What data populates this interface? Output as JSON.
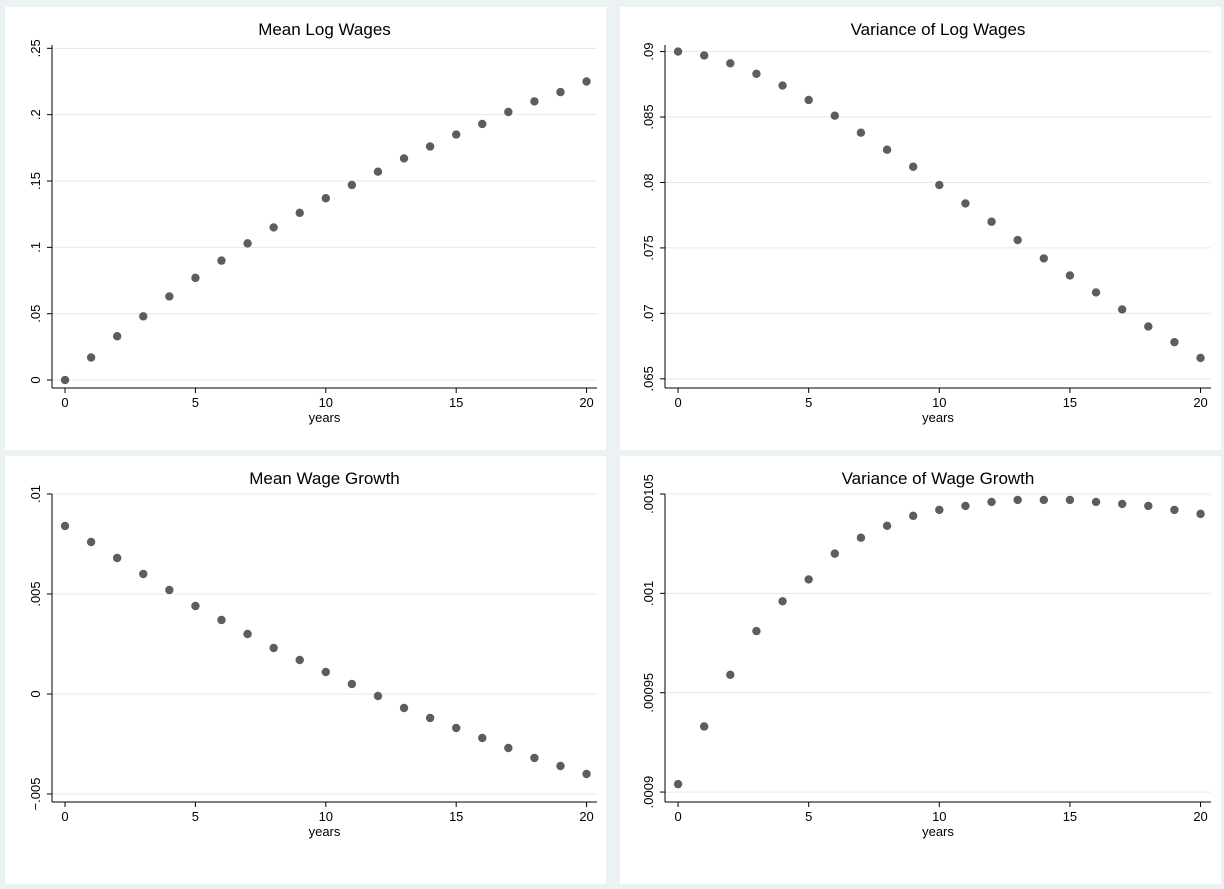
{
  "chart_data": [
    {
      "type": "scatter",
      "title": "Mean Log Wages",
      "xlabel": "years",
      "ylabel": "",
      "xlim": [
        -0.5,
        20.4
      ],
      "ylim": [
        -0.006,
        0.2525
      ],
      "xticks": [
        0,
        5,
        10,
        15,
        20
      ],
      "xtick_labels": [
        "0",
        "5",
        "10",
        "15",
        "20"
      ],
      "yticks": [
        0,
        0.05,
        0.1,
        0.15,
        0.2,
        0.25
      ],
      "ytick_labels": [
        "0",
        ".05",
        ".1",
        ".15",
        ".2",
        ".25"
      ],
      "grid": true,
      "x": [
        0,
        1,
        2,
        3,
        4,
        5,
        6,
        7,
        8,
        9,
        10,
        11,
        12,
        13,
        14,
        15,
        16,
        17,
        18,
        19,
        20
      ],
      "y": [
        0,
        0.017,
        0.033,
        0.048,
        0.063,
        0.077,
        0.09,
        0.103,
        0.115,
        0.126,
        0.137,
        0.147,
        0.157,
        0.167,
        0.176,
        0.185,
        0.193,
        0.202,
        0.21,
        0.217,
        0.225
      ]
    },
    {
      "type": "scatter",
      "title": "Variance of Log Wages",
      "xlabel": "years",
      "ylabel": "",
      "xlim": [
        -0.5,
        20.4
      ],
      "ylim": [
        0.0643,
        0.0905
      ],
      "xticks": [
        0,
        5,
        10,
        15,
        20
      ],
      "xtick_labels": [
        "0",
        "5",
        "10",
        "15",
        "20"
      ],
      "yticks": [
        0.065,
        0.07,
        0.075,
        0.08,
        0.085,
        0.09
      ],
      "ytick_labels": [
        ".065",
        ".07",
        ".075",
        ".08",
        ".085",
        ".09"
      ],
      "grid": true,
      "x": [
        0,
        1,
        2,
        3,
        4,
        5,
        6,
        7,
        8,
        9,
        10,
        11,
        12,
        13,
        14,
        15,
        16,
        17,
        18,
        19,
        20
      ],
      "y": [
        0.09,
        0.0897,
        0.0891,
        0.0883,
        0.0874,
        0.0863,
        0.0851,
        0.0838,
        0.0825,
        0.0812,
        0.0798,
        0.0784,
        0.077,
        0.0756,
        0.0742,
        0.0729,
        0.0716,
        0.0703,
        0.069,
        0.0678,
        0.0666
      ]
    },
    {
      "type": "scatter",
      "title": "Mean Wage Growth",
      "xlabel": "years",
      "ylabel": "",
      "xlim": [
        -0.5,
        20.4
      ],
      "ylim": [
        -0.0054,
        0.01
      ],
      "xticks": [
        0,
        5,
        10,
        15,
        20
      ],
      "xtick_labels": [
        "0",
        "5",
        "10",
        "15",
        "20"
      ],
      "yticks": [
        -0.005,
        0,
        0.005,
        0.01
      ],
      "ytick_labels": [
        "−.005",
        "0",
        ".005",
        ".01"
      ],
      "grid": true,
      "x": [
        0,
        1,
        2,
        3,
        4,
        5,
        6,
        7,
        8,
        9,
        10,
        11,
        12,
        13,
        14,
        15,
        16,
        17,
        18,
        19,
        20
      ],
      "y": [
        0.0084,
        0.0076,
        0.0068,
        0.006,
        0.0052,
        0.0044,
        0.0037,
        0.003,
        0.0023,
        0.0017,
        0.0011,
        0.0005,
        -0.0001,
        -0.0007,
        -0.0012,
        -0.0017,
        -0.0022,
        -0.0027,
        -0.0032,
        -0.0036,
        -0.004
      ]
    },
    {
      "type": "scatter",
      "title": "Variance of Wage Growth",
      "xlabel": "years",
      "ylabel": "",
      "xlim": [
        -0.5,
        20.4
      ],
      "ylim": [
        0.000895,
        0.00105
      ],
      "xticks": [
        0,
        5,
        10,
        15,
        20
      ],
      "xtick_labels": [
        "0",
        "5",
        "10",
        "15",
        "20"
      ],
      "yticks": [
        0.0009,
        0.00095,
        0.001,
        0.00105
      ],
      "ytick_labels": [
        ".0009",
        ".00095",
        ".001",
        ".00105"
      ],
      "grid": true,
      "x": [
        0,
        1,
        2,
        3,
        4,
        5,
        6,
        7,
        8,
        9,
        10,
        11,
        12,
        13,
        14,
        15,
        16,
        17,
        18,
        19,
        20
      ],
      "y": [
        0.000904,
        0.000933,
        0.000959,
        0.000981,
        0.000996,
        0.001007,
        0.00102,
        0.001028,
        0.001034,
        0.001039,
        0.001042,
        0.001044,
        0.001046,
        0.001047,
        0.001047,
        0.001047,
        0.001046,
        0.001045,
        0.001044,
        0.001042,
        0.00104
      ]
    }
  ]
}
